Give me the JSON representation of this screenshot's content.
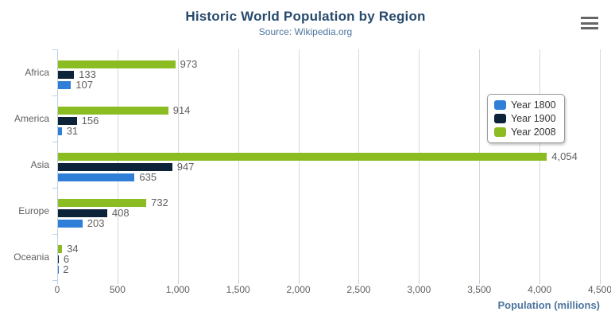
{
  "chart_data": {
    "type": "bar",
    "orientation": "horizontal",
    "title": "Historic World Population by Region",
    "subtitle": "Source: Wikipedia.org",
    "categories": [
      "Africa",
      "America",
      "Asia",
      "Europe",
      "Oceania"
    ],
    "series": [
      {
        "name": "Year 1800",
        "color": "#2f7ed8",
        "values": [
          107,
          31,
          635,
          203,
          2
        ]
      },
      {
        "name": "Year 1900",
        "color": "#0d233a",
        "values": [
          133,
          156,
          947,
          408,
          6
        ]
      },
      {
        "name": "Year 2008",
        "color": "#8bbc21",
        "values": [
          973,
          914,
          4054,
          732,
          34
        ]
      }
    ],
    "bar_order_top_to_bottom": [
      "Year 2008",
      "Year 1900",
      "Year 1800"
    ],
    "xlabel": "Population (millions)",
    "xlim": [
      0,
      4500
    ],
    "xticks": [
      0,
      500,
      1000,
      1500,
      2000,
      2500,
      3000,
      3500,
      4000,
      4500
    ],
    "xtick_labels": [
      "0",
      "500",
      "1,000",
      "1,500",
      "2,000",
      "2,500",
      "3,000",
      "3,500",
      "4,000",
      "4,500"
    ],
    "grid": true,
    "legend_position": "right-middle",
    "data_labels_shown": true
  },
  "header": {
    "menu_icon": "hamburger-icon"
  },
  "colors": {
    "title": "#274b6d",
    "subtitle": "#4d759e",
    "axis_title": "#4d759e",
    "tick_label": "#606060",
    "gridline": "#d8d8d8",
    "axis_line": "#c0d0e0",
    "menu_icon": "#666666"
  }
}
